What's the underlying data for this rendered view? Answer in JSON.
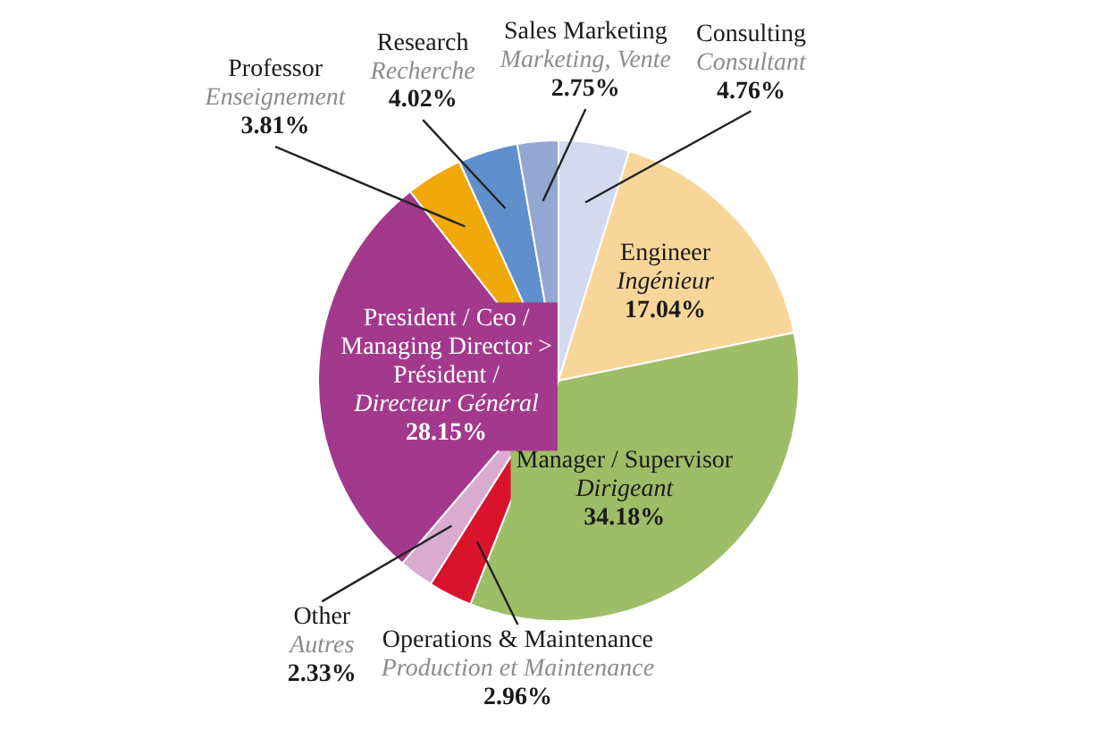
{
  "chart_data": {
    "type": "pie",
    "categories": [
      "Consulting\nConsultant",
      "Engineer\nIngénieur",
      "Manager / Supervisor\nDirigeant",
      "Operations & Maintenance\nProduction et Maintenance",
      "Other\nAutres",
      "President / Ceo /\nManaging Director >\nPrésident /\nDirecteur Général",
      "Professor\nEnseignement",
      "Research\nRecherche",
      "Sales Marketing\nMarketing, Vente"
    ],
    "values": [
      4.76,
      17.04,
      34.18,
      2.96,
      2.33,
      28.15,
      3.81,
      4.02,
      2.75
    ],
    "value_labels": [
      "4.76%",
      "17.04%",
      "34.18%",
      "2.96%",
      "2.33%",
      "28.15%",
      "3.81%",
      "4.02%",
      "2.75%"
    ],
    "colors": [
      "#d3daee",
      "#f8d699",
      "#9dbd66",
      "#d8132b",
      "#d9abcf",
      "#a3398c",
      "#f0a80a",
      "#5f8fcc",
      "#94a6d2"
    ],
    "legend": false
  }
}
